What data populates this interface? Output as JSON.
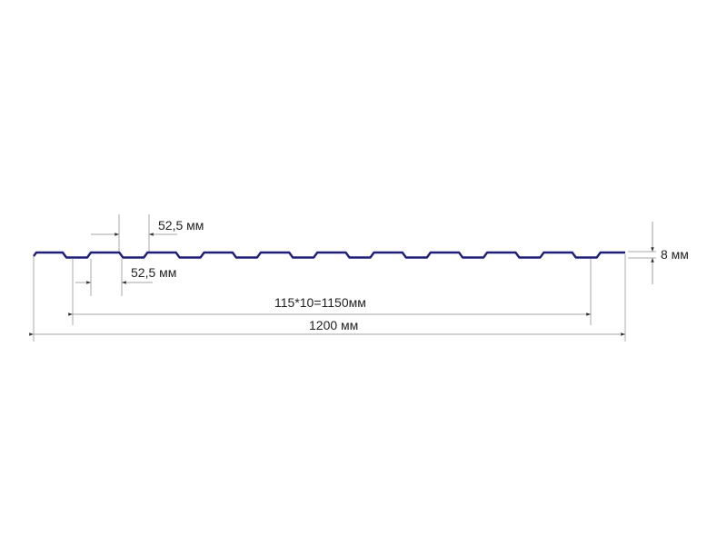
{
  "colors": {
    "profile": "#1f1f7a",
    "dimension": "#9a9a9a"
  },
  "labels": {
    "top_pitch": "52,5 мм",
    "bottom_pitch": "52,5 мм",
    "height": "8 мм",
    "working_width": "115*10=1150мм",
    "total_width": "1200 мм"
  }
}
